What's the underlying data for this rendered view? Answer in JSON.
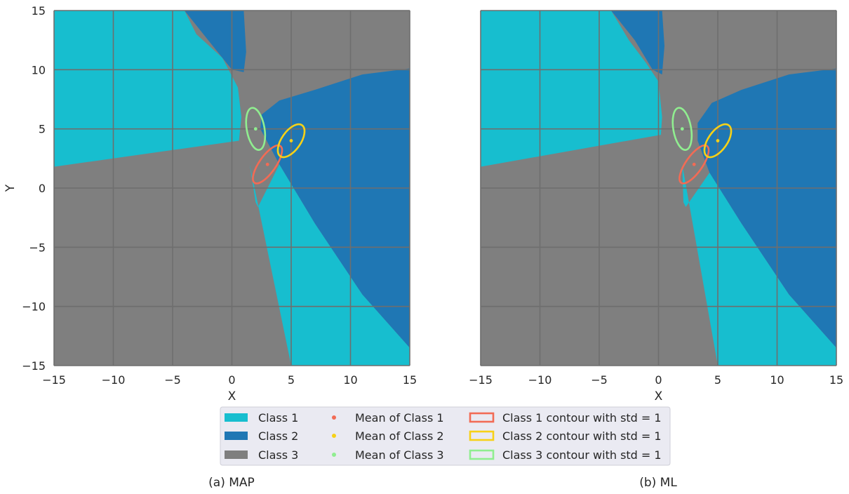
{
  "colors": {
    "class1_region": "#17becf",
    "class2_region": "#1f77b4",
    "class3_region": "#7f7f7f",
    "class1_mark": "#f26b55",
    "class2_mark": "#f7d117",
    "class3_mark": "#90ee90",
    "grid": "#6e6e6e",
    "legend_bg": "#eaeaf2"
  },
  "chart_data": [
    {
      "type": "decision-region",
      "caption": "(a) MAP",
      "xlabel": "X",
      "ylabel": "Y",
      "xlim": [
        -15,
        15
      ],
      "ylim": [
        -15,
        15
      ],
      "xticks": [
        "−15",
        "−10",
        "−5",
        "0",
        "5",
        "10",
        "15"
      ],
      "yticks": [
        "15",
        "10",
        "5",
        "0",
        "−5",
        "−10",
        "−15"
      ],
      "grid": true,
      "means": [
        {
          "class": "Class 1",
          "x": 3,
          "y": 2
        },
        {
          "class": "Class 2",
          "x": 5,
          "y": 4
        },
        {
          "class": "Class 3",
          "x": 2,
          "y": 5
        }
      ],
      "contours_std1": [
        {
          "class": "Class 1",
          "cx": 3,
          "cy": 2,
          "rx": 0.7,
          "ry": 1.9,
          "angle_deg": 35
        },
        {
          "class": "Class 2",
          "cx": 5,
          "cy": 4,
          "rx": 0.8,
          "ry": 1.6,
          "angle_deg": 35
        },
        {
          "class": "Class 3",
          "cx": 2,
          "cy": 5,
          "rx": 0.75,
          "ry": 1.8,
          "angle_deg": -10
        }
      ],
      "regions": [
        {
          "class": "Class 1",
          "polygon": [
            [
              -15,
              15
            ],
            [
              -4,
              15
            ],
            [
              -3,
              13
            ],
            [
              -0.8,
              11
            ],
            [
              0.5,
              8.5
            ],
            [
              0.8,
              6
            ],
            [
              0.6,
              4
            ],
            [
              -15,
              1.8
            ]
          ]
        },
        {
          "class": "Class 2",
          "polygon": [
            [
              -4,
              15
            ],
            [
              1,
              15
            ],
            [
              1.2,
              11.5
            ],
            [
              1,
              9.8
            ],
            [
              0,
              10
            ],
            [
              -2,
              12.5
            ]
          ]
        },
        {
          "class": "Class 2",
          "polygon": [
            [
              2.5,
              6.2
            ],
            [
              4,
              7.4
            ],
            [
              7,
              8.3
            ],
            [
              11,
              9.6
            ],
            [
              15,
              10.1
            ],
            [
              15,
              -13.5
            ],
            [
              11,
              -9
            ],
            [
              7,
              -3
            ],
            [
              4,
              2
            ],
            [
              2.4,
              5
            ]
          ]
        },
        {
          "class": "Class 1",
          "polygon": [
            [
              1.5,
              2
            ],
            [
              2,
              -1.2
            ],
            [
              2.2,
              -1.6
            ],
            [
              4,
              2
            ],
            [
              7,
              -3
            ],
            [
              11,
              -9
            ],
            [
              15,
              -13.5
            ],
            [
              15,
              -15
            ],
            [
              5,
              -15
            ]
          ]
        }
      ]
    },
    {
      "type": "decision-region",
      "caption": "(b) ML",
      "xlabel": "X",
      "ylabel": "",
      "xlim": [
        -15,
        15
      ],
      "ylim": [
        -15,
        15
      ],
      "xticks": [
        "−15",
        "−10",
        "−5",
        "0",
        "5",
        "10",
        "15"
      ],
      "yticks": [],
      "grid": true,
      "means": [
        {
          "class": "Class 1",
          "x": 3,
          "y": 2
        },
        {
          "class": "Class 2",
          "x": 5,
          "y": 4
        },
        {
          "class": "Class 3",
          "x": 2,
          "y": 5
        }
      ],
      "contours_std1": [
        {
          "class": "Class 1",
          "cx": 3,
          "cy": 2,
          "rx": 0.7,
          "ry": 1.9,
          "angle_deg": 35
        },
        {
          "class": "Class 2",
          "cx": 5,
          "cy": 4,
          "rx": 0.8,
          "ry": 1.6,
          "angle_deg": 35
        },
        {
          "class": "Class 3",
          "cx": 2,
          "cy": 5,
          "rx": 0.75,
          "ry": 1.8,
          "angle_deg": -10
        }
      ],
      "regions": [
        {
          "class": "Class 1",
          "polygon": [
            [
              -15,
              15
            ],
            [
              -4,
              15
            ],
            [
              -2.5,
              12.5
            ],
            [
              -1,
              10.5
            ],
            [
              0,
              9
            ],
            [
              0.3,
              6
            ],
            [
              0.2,
              4.5
            ],
            [
              -15,
              1.8
            ]
          ]
        },
        {
          "class": "Class 2",
          "polygon": [
            [
              -4,
              15
            ],
            [
              0.3,
              15
            ],
            [
              0.5,
              12
            ],
            [
              0.3,
              9.6
            ],
            [
              -0.5,
              10
            ],
            [
              -2,
              12.5
            ]
          ]
        },
        {
          "class": "Class 2",
          "polygon": [
            [
              3.3,
              5.5
            ],
            [
              4.5,
              7.2
            ],
            [
              7,
              8.3
            ],
            [
              11,
              9.6
            ],
            [
              15,
              10.1
            ],
            [
              15,
              -13.5
            ],
            [
              11,
              -9
            ],
            [
              7,
              -3
            ],
            [
              4.3,
              1.3
            ],
            [
              3.3,
              4
            ]
          ]
        },
        {
          "class": "Class 1",
          "polygon": [
            [
              2,
              2
            ],
            [
              2.1,
              -1.2
            ],
            [
              2.3,
              -1.6
            ],
            [
              4.3,
              1.3
            ],
            [
              7,
              -3
            ],
            [
              11,
              -9
            ],
            [
              15,
              -13.5
            ],
            [
              15,
              -15
            ],
            [
              5,
              -15
            ]
          ]
        }
      ]
    }
  ],
  "legend": {
    "columns": [
      [
        {
          "label": "Class 1",
          "kind": "patch",
          "color": "#17becf"
        },
        {
          "label": "Class 2",
          "kind": "patch",
          "color": "#1f77b4"
        },
        {
          "label": "Class 3",
          "kind": "patch",
          "color": "#7f7f7f"
        }
      ],
      [
        {
          "label": "Mean of Class 1",
          "kind": "dot",
          "color": "#f26b55"
        },
        {
          "label": "Mean of Class 2",
          "kind": "dot",
          "color": "#f7d117"
        },
        {
          "label": "Mean of Class 3",
          "kind": "dot",
          "color": "#90ee90"
        }
      ],
      [
        {
          "label": "Class 1 contour with std = 1",
          "kind": "outline",
          "color": "#f26b55"
        },
        {
          "label": "Class 2 contour with std = 1",
          "kind": "outline",
          "color": "#f7d117"
        },
        {
          "label": "Class 3 contour with std = 1",
          "kind": "outline",
          "color": "#90ee90"
        }
      ]
    ]
  }
}
